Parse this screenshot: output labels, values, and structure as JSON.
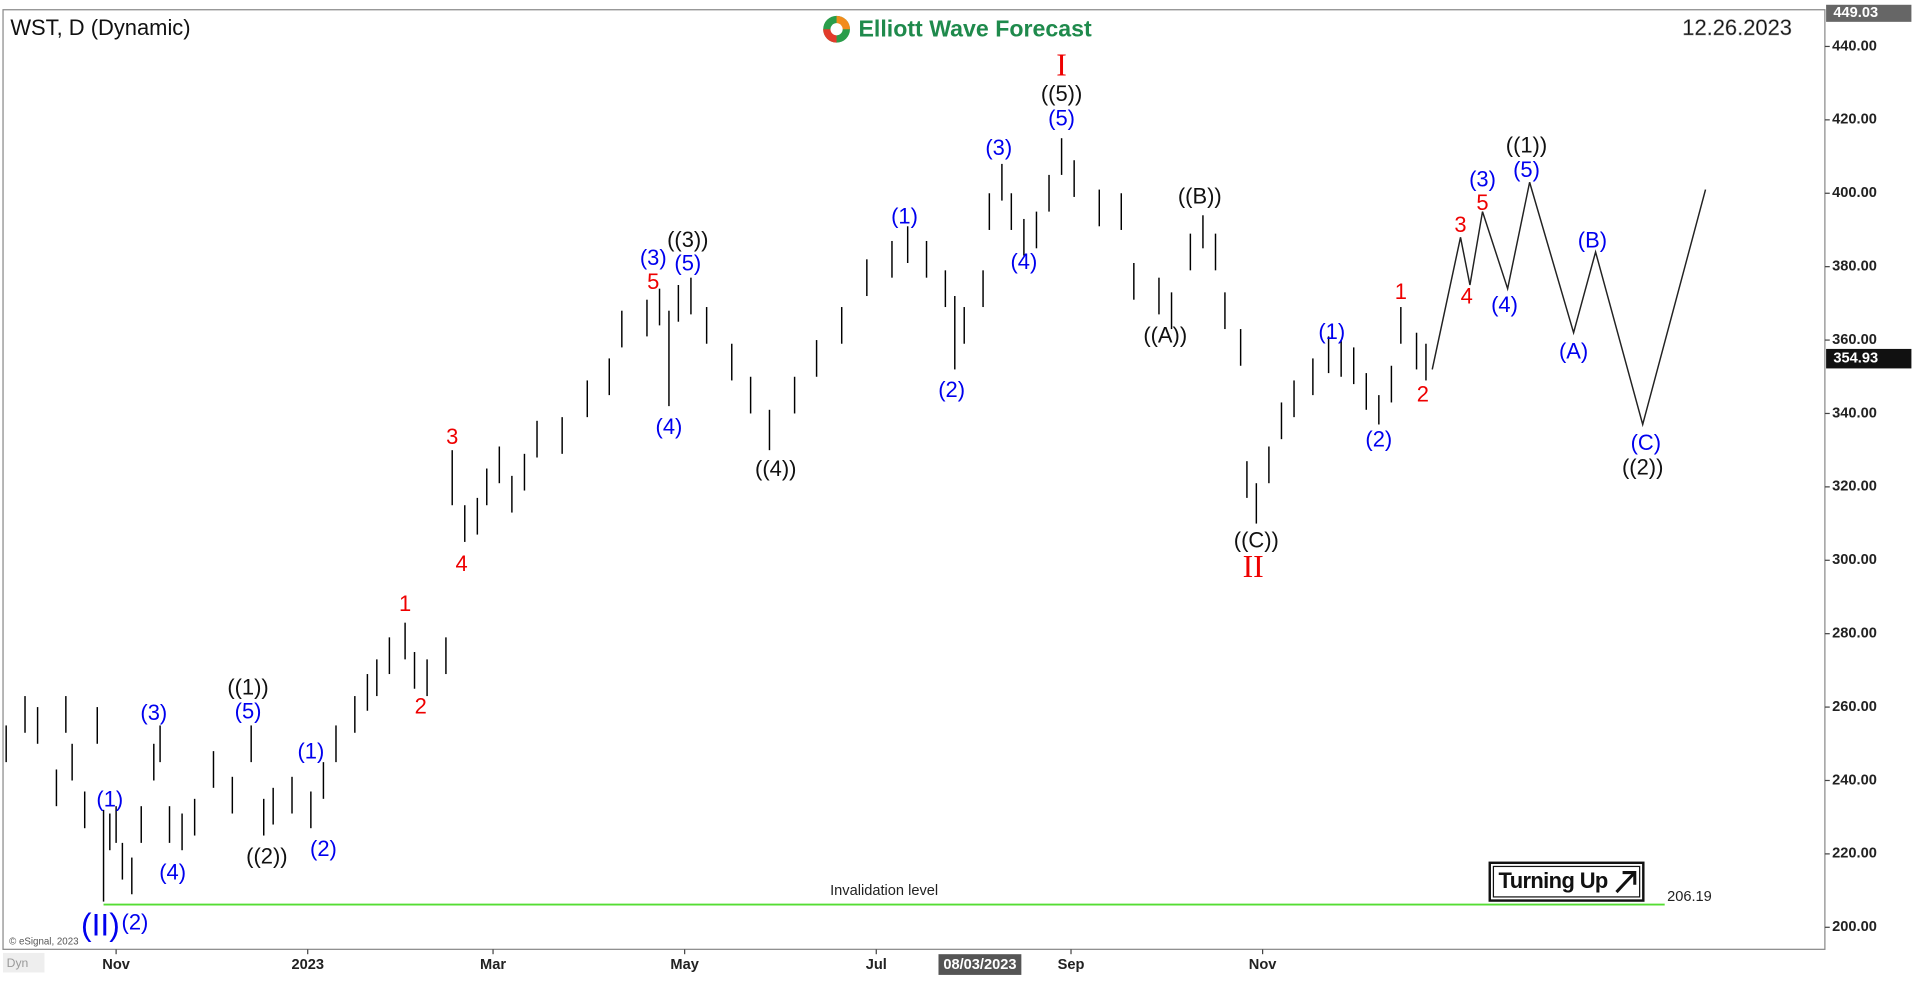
{
  "chart_data": {
    "type": "ohlc",
    "title": "WST, D (Dynamic)",
    "brand": "Elliott Wave Forecast",
    "date": "12.26.2023",
    "copyright": "© eSignal, 2023",
    "footer": "Dyn",
    "badge": "Turning Up",
    "color": "#000000",
    "x": [
      -35,
      -29,
      -25,
      -19,
      -16,
      -14,
      -10,
      -6,
      -4,
      -2,
      0,
      2,
      5,
      8,
      12,
      14,
      17,
      21,
      25,
      31,
      37,
      43,
      47,
      50,
      56,
      62,
      66,
      70,
      76,
      80,
      83,
      87,
      92,
      95,
      99,
      105,
      107,
      111,
      115,
      118,
      122,
      126,
      130,
      134,
      142,
      150,
      157,
      161,
      169,
      173,
      176,
      179,
      183,
      188,
      196,
      202,
      208,
      216,
      223,
      231,
      239,
      247,
      252,
      258,
      264,
      267,
      270,
      276,
      278,
      282,
      285,
      289,
      293,
      297,
      301,
      305,
      313,
      320,
      324,
      332,
      336,
      342,
      346,
      350,
      353,
      358,
      360,
      363,
      367,
      371,
      375,
      381,
      386,
      390,
      394,
      398,
      402,
      406,
      409,
      414,
      417
    ],
    "high": [
      255,
      263,
      260,
      243,
      263,
      250,
      237,
      260,
      232,
      231,
      233,
      223,
      219,
      233,
      250,
      255,
      233,
      231,
      235,
      248,
      241,
      255,
      235,
      238,
      241,
      237,
      245,
      255,
      263,
      269,
      273,
      279,
      283,
      275,
      273,
      279,
      330,
      315,
      317,
      325,
      331,
      323,
      329,
      338,
      339,
      349,
      355,
      368,
      371,
      374,
      368,
      375,
      377,
      369,
      359,
      350,
      341,
      350,
      360,
      369,
      382,
      387,
      391,
      387,
      379,
      372,
      369,
      379,
      400,
      408,
      400,
      393,
      395,
      405,
      415,
      409,
      401,
      400,
      381,
      377,
      373,
      389,
      394,
      389,
      373,
      363,
      327,
      321,
      331,
      343,
      349,
      355,
      361,
      360,
      358,
      351,
      345,
      353,
      369,
      362,
      359
    ],
    "low": [
      245,
      253,
      250,
      233,
      253,
      240,
      227,
      250,
      207,
      221,
      223,
      213,
      209,
      223,
      240,
      245,
      223,
      221,
      225,
      238,
      231,
      245,
      225,
      228,
      231,
      227,
      235,
      245,
      253,
      259,
      263,
      269,
      273,
      265,
      263,
      269,
      315,
      305,
      307,
      315,
      321,
      313,
      319,
      328,
      329,
      339,
      345,
      358,
      361,
      364,
      342,
      365,
      367,
      359,
      349,
      340,
      330,
      340,
      350,
      359,
      372,
      377,
      381,
      377,
      369,
      352,
      359,
      369,
      390,
      398,
      390,
      383,
      385,
      395,
      405,
      399,
      391,
      390,
      371,
      367,
      363,
      379,
      385,
      379,
      363,
      353,
      317,
      310,
      321,
      333,
      339,
      345,
      351,
      350,
      348,
      341,
      337,
      343,
      359,
      352,
      349
    ],
    "xlim": [
      -36,
      544
    ],
    "xticks": [
      {
        "value": 0,
        "label": "Nov"
      },
      {
        "value": 61,
        "label": "2023"
      },
      {
        "value": 120,
        "label": "Mar"
      },
      {
        "value": 181,
        "label": "May"
      },
      {
        "value": 242,
        "label": "Jul"
      },
      {
        "value": 304,
        "label": "Sep"
      },
      {
        "value": 365,
        "label": "Nov"
      }
    ],
    "crosshair_date": {
      "value": 275,
      "label": "08/03/2023"
    },
    "ylim": [
      194,
      450
    ],
    "yticks": [
      {
        "value": 200,
        "label": "200.00"
      },
      {
        "value": 220,
        "label": "220.00"
      },
      {
        "value": 240,
        "label": "240.00"
      },
      {
        "value": 260,
        "label": "260.00"
      },
      {
        "value": 280,
        "label": "280.00"
      },
      {
        "value": 300,
        "label": "300.00"
      },
      {
        "value": 320,
        "label": "320.00"
      },
      {
        "value": 340,
        "label": "340.00"
      },
      {
        "value": 360,
        "label": "360.00"
      },
      {
        "value": 380,
        "label": "380.00"
      },
      {
        "value": 400,
        "label": "400.00"
      },
      {
        "value": 420,
        "label": "420.00"
      },
      {
        "value": 440,
        "label": "440.00"
      }
    ],
    "axis_max": 449.03,
    "last_price": 354.93,
    "projection": {
      "color": "#222222",
      "x": [
        419,
        428,
        431,
        435,
        443,
        450,
        464,
        471,
        486,
        506
      ],
      "values": [
        352,
        388,
        375,
        395,
        374,
        403,
        362,
        384,
        337,
        401
      ]
    },
    "invalidation": {
      "label": "Invalidation level",
      "value": 206.19,
      "x": [
        -4,
        493
      ],
      "color": "#55dd33"
    },
    "wave_labels": [
      {
        "text": "(1)",
        "x": -2,
        "y": 234.5,
        "color": "#0000ee"
      },
      {
        "text": "(II)",
        "x": -5,
        "y": 200,
        "color": "#0000ee",
        "size": "large"
      },
      {
        "text": "(2)",
        "x": 6,
        "y": 201,
        "color": "#0000ee"
      },
      {
        "text": "(3)",
        "x": 12,
        "y": 258,
        "color": "#0000ee"
      },
      {
        "text": "(4)",
        "x": 18,
        "y": 214.6,
        "color": "#0000ee"
      },
      {
        "text": "((1))",
        "x": 42,
        "y": 265,
        "color": "#111111"
      },
      {
        "text": "(5)",
        "x": 42,
        "y": 258.5,
        "color": "#0000ee"
      },
      {
        "text": "((2))",
        "x": 48,
        "y": 219,
        "color": "#111111"
      },
      {
        "text": "(1)",
        "x": 62,
        "y": 247.5,
        "color": "#0000ee"
      },
      {
        "text": "(2)",
        "x": 66,
        "y": 221,
        "color": "#0000ee"
      },
      {
        "text": "1",
        "x": 92,
        "y": 287.7,
        "color": "#ee0000"
      },
      {
        "text": "2",
        "x": 97,
        "y": 259.8,
        "color": "#ee0000"
      },
      {
        "text": "3",
        "x": 107,
        "y": 333.3,
        "color": "#ee0000"
      },
      {
        "text": "4",
        "x": 110,
        "y": 298.7,
        "color": "#ee0000"
      },
      {
        "text": "5",
        "x": 171,
        "y": 375.5,
        "color": "#ee0000"
      },
      {
        "text": "(3)",
        "x": 171,
        "y": 382,
        "color": "#0000ee"
      },
      {
        "text": "((3))",
        "x": 182,
        "y": 387,
        "color": "#111111"
      },
      {
        "text": "(5)",
        "x": 182,
        "y": 380.5,
        "color": "#0000ee"
      },
      {
        "text": "(4)",
        "x": 176,
        "y": 336,
        "color": "#0000ee"
      },
      {
        "text": "((4))",
        "x": 210,
        "y": 324.6,
        "color": "#111111"
      },
      {
        "text": "(1)",
        "x": 251,
        "y": 393.4,
        "color": "#0000ee"
      },
      {
        "text": "(2)",
        "x": 266,
        "y": 346,
        "color": "#0000ee"
      },
      {
        "text": "(3)",
        "x": 281,
        "y": 412,
        "color": "#0000ee"
      },
      {
        "text": "(4)",
        "x": 289,
        "y": 381,
        "color": "#0000ee"
      },
      {
        "text": "I",
        "x": 301,
        "y": 434,
        "color": "#ee0000",
        "size": "large"
      },
      {
        "text": "((5))",
        "x": 301,
        "y": 426.7,
        "color": "#111111"
      },
      {
        "text": "(5)",
        "x": 301,
        "y": 420,
        "color": "#0000ee"
      },
      {
        "text": "((B))",
        "x": 345,
        "y": 398.8,
        "color": "#111111"
      },
      {
        "text": "((A))",
        "x": 334,
        "y": 360.9,
        "color": "#111111"
      },
      {
        "text": "((C))",
        "x": 363,
        "y": 305,
        "color": "#111111"
      },
      {
        "text": "II",
        "x": 362,
        "y": 297.4,
        "color": "#ee0000",
        "size": "large"
      },
      {
        "text": "(1)",
        "x": 387,
        "y": 361.9,
        "color": "#0000ee"
      },
      {
        "text": "(2)",
        "x": 402,
        "y": 332.6,
        "color": "#0000ee"
      },
      {
        "text": "1",
        "x": 409,
        "y": 372.8,
        "color": "#ee0000"
      },
      {
        "text": "2",
        "x": 416,
        "y": 344.9,
        "color": "#ee0000"
      },
      {
        "text": "3",
        "x": 428,
        "y": 391,
        "color": "#ee0000"
      },
      {
        "text": "4",
        "x": 430,
        "y": 371.5,
        "color": "#ee0000"
      },
      {
        "text": "5",
        "x": 435,
        "y": 397,
        "color": "#ee0000"
      },
      {
        "text": "(3)",
        "x": 435,
        "y": 403.4,
        "color": "#0000ee"
      },
      {
        "text": "(4)",
        "x": 442,
        "y": 369.2,
        "color": "#0000ee"
      },
      {
        "text": "((1))",
        "x": 449,
        "y": 412.7,
        "color": "#111111"
      },
      {
        "text": "(5)",
        "x": 449,
        "y": 406,
        "color": "#0000ee"
      },
      {
        "text": "(B)",
        "x": 470,
        "y": 386.8,
        "color": "#0000ee"
      },
      {
        "text": "(A)",
        "x": 464,
        "y": 356.5,
        "color": "#0000ee"
      },
      {
        "text": "(C)",
        "x": 487,
        "y": 331.6,
        "color": "#0000ee"
      },
      {
        "text": "((2))",
        "x": 486,
        "y": 325,
        "color": "#111111"
      }
    ]
  }
}
